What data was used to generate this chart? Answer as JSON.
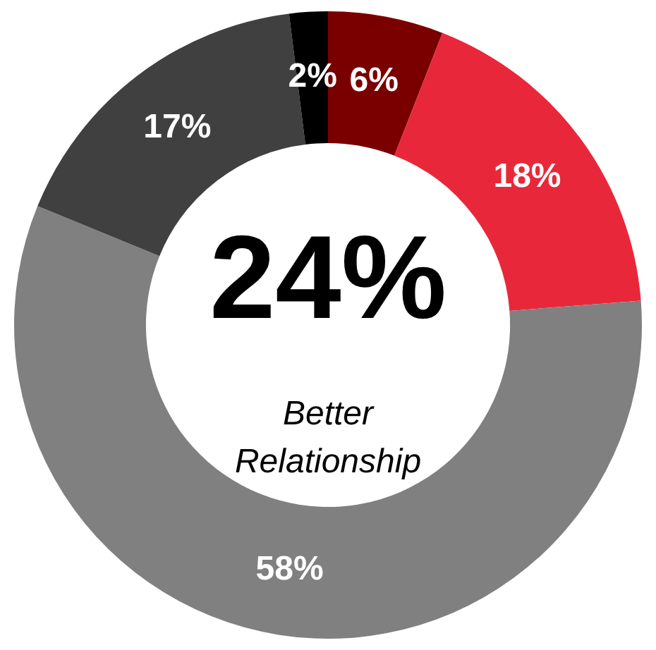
{
  "chart_data": {
    "type": "donut",
    "categories": [
      null,
      null,
      null,
      null,
      null
    ],
    "values": [
      6,
      18,
      58,
      17,
      2
    ],
    "colors": [
      "#7a0000",
      "#e8283a",
      "#808080",
      "#404040",
      "#000000"
    ],
    "value_labels": [
      "6%",
      "18%",
      "58%",
      "17%",
      "2%"
    ],
    "annotations": [
      "24%",
      "Better Relationship"
    ],
    "legend": false
  }
}
